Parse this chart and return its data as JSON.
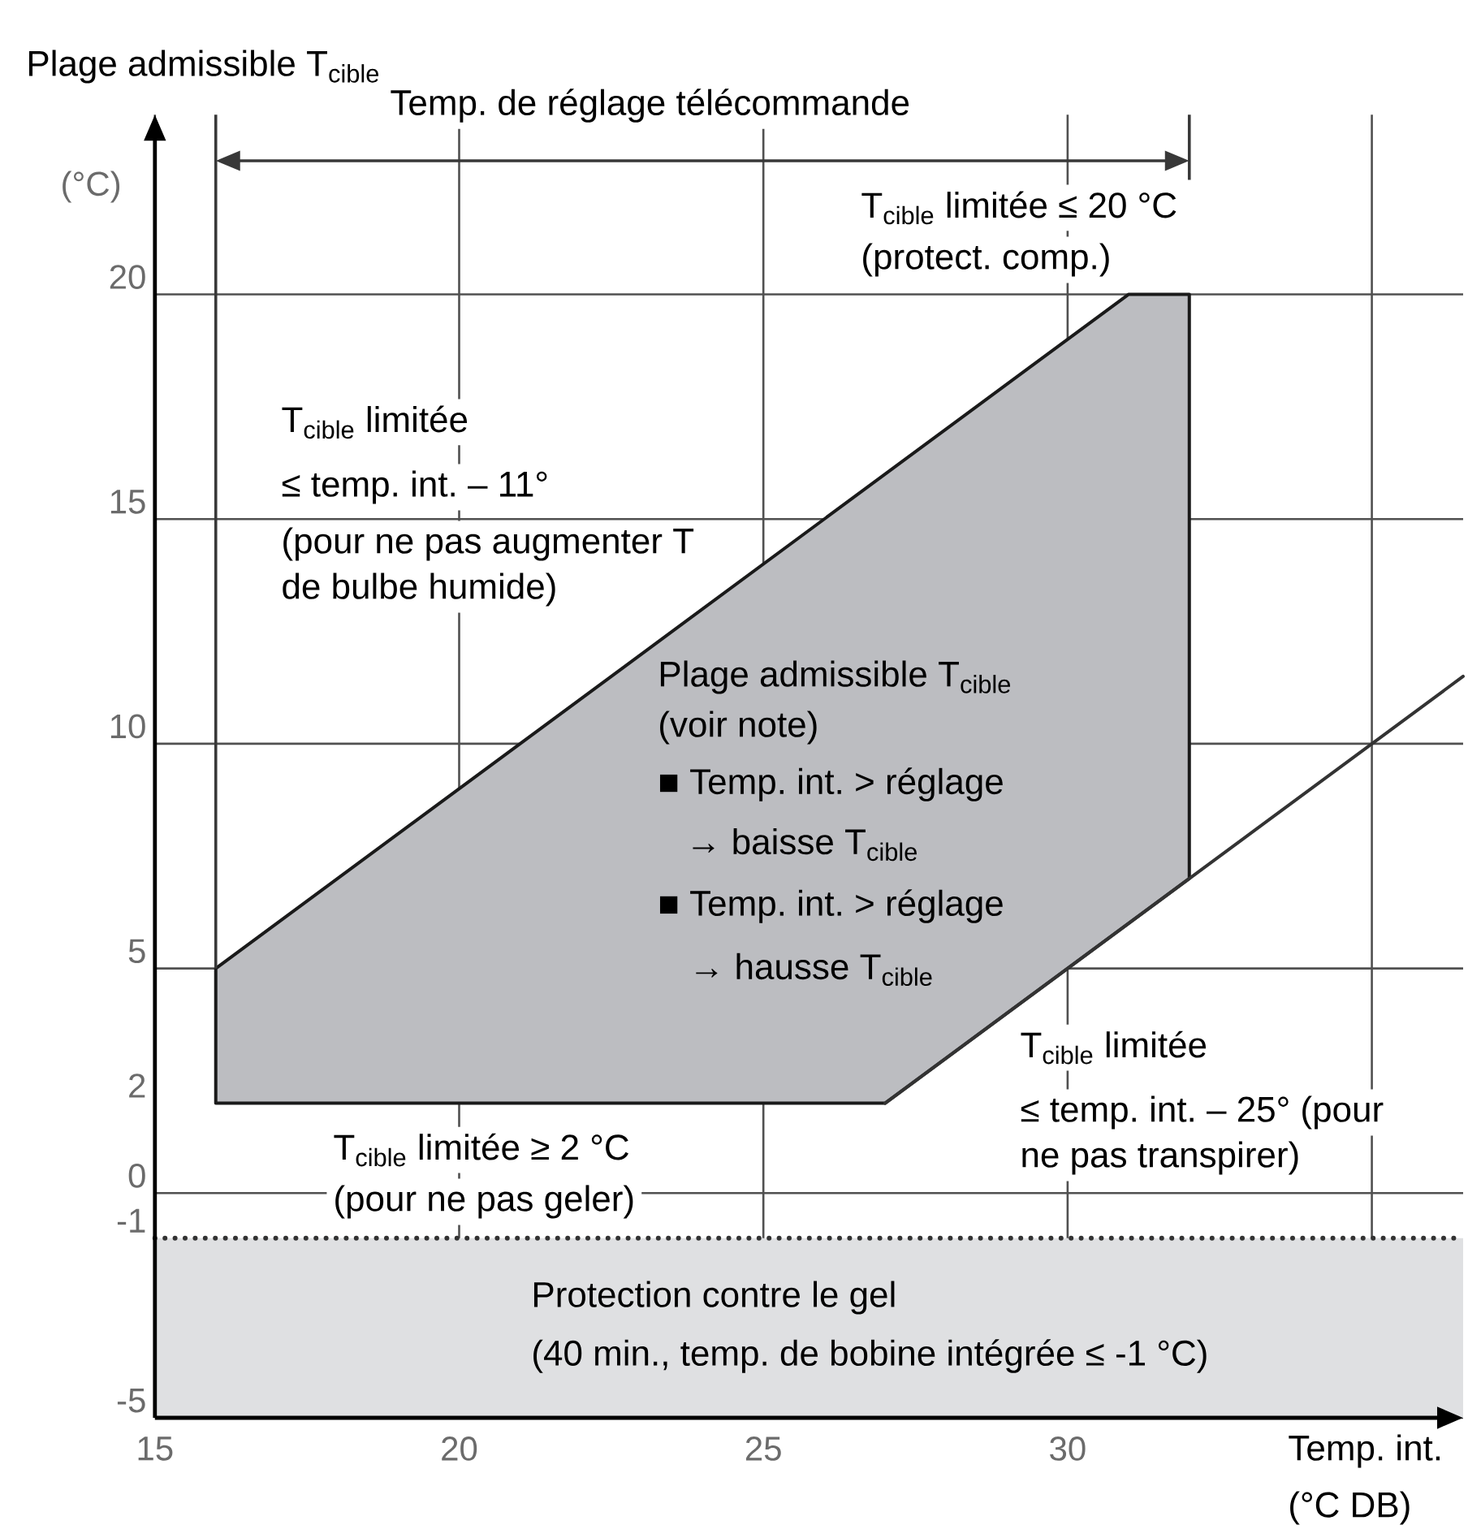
{
  "chart_data": {
    "type": "area",
    "title": "Plage admissible T$_{cible}$",
    "xlabel": "Temp. int. (°C DB)",
    "ylabel": "(°C)",
    "xlim": [
      15,
      36.5
    ],
    "ylim": [
      -5,
      24
    ],
    "xticks": [
      15,
      20,
      25,
      30,
      {
        "value": 35,
        "label": null
      }
    ],
    "yticks": [
      -5,
      -1,
      0,
      2,
      5,
      10,
      15,
      20
    ],
    "grid": true,
    "series": [
      {
        "x": [
          16,
          16,
          31,
          32,
          32,
          27
        ],
        "values": [
          2,
          5,
          20,
          20,
          7,
          2
        ],
        "color": "#bcbdc1"
      },
      {
        "type": "line",
        "x": [
          27,
          36.5
        ],
        "values": [
          2,
          11.5
        ],
        "color": "#333333"
      }
    ],
    "ref_lines": [
      {
        "axis": "y",
        "value": -1,
        "line_style": "dotted",
        "color": "#333333"
      }
    ],
    "bands": [
      {
        "axis": "y",
        "from": -5,
        "to": -1,
        "label": "Protection contre le gel",
        "color": "#dfe0e2"
      }
    ],
    "annotations": [
      "Temp. de réglage télécommande",
      "T$_{cible}$ limitée ≤ 20 °C",
      "(protect. comp.)",
      "T$_{cible}$ limitée",
      "≤ temp. int. – 11°",
      "(pour ne pas augmenter T",
      "de bulbe humide)",
      "Plage admissible T$_{cible}$",
      "(voir note)",
      "■ Temp. int. > réglage",
      "→ baisse T$_{cible}$",
      "■ Temp. int. > réglage",
      "→ hausse T$_{cible}$",
      "T$_{cible}$ limitée",
      "≤ temp. int. – 25° (pour",
      "ne pas transpirer)",
      "T$_{cible}$ limitée ≥ 2 °C",
      "(pour ne pas geler)",
      "(40 min., temp. de bobine intégrée ≤ -1 °C)"
    ]
  }
}
